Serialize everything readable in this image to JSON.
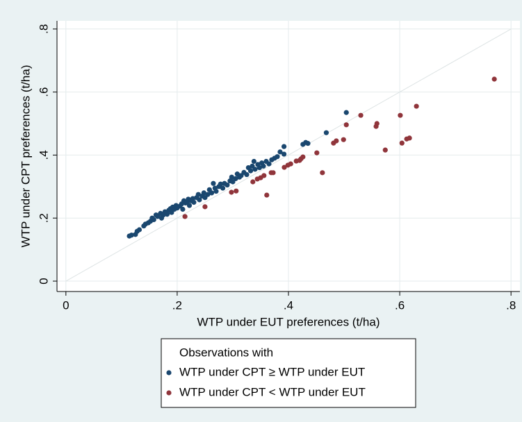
{
  "chart_data": {
    "type": "scatter",
    "x_label": "WTP under EUT preferences (t/ha)",
    "y_label": "WTP under CPT preferences (t/ha)",
    "xlim": [
      -0.016,
      0.816
    ],
    "ylim": [
      -0.033,
      0.826
    ],
    "xticks": [
      {
        "value": 0,
        "label": "0"
      },
      {
        "value": 0.2,
        "label": ".2"
      },
      {
        "value": 0.4,
        "label": ".4"
      },
      {
        "value": 0.6,
        "label": ".6"
      },
      {
        "value": 0.8,
        "label": ".8"
      }
    ],
    "yticks": [
      {
        "value": 0,
        "label": "0"
      },
      {
        "value": 0.2,
        "label": ".2"
      },
      {
        "value": 0.4,
        "label": ".4"
      },
      {
        "value": 0.6,
        "label": ".6"
      },
      {
        "value": 0.8,
        "label": ".8"
      }
    ],
    "grid": true,
    "legend_title": "Observations with",
    "legend_position": "bottom",
    "series": [
      {
        "name": "WTP under CPT ≥ WTP under EUT",
        "color": "#1a476f",
        "x": [
          0.114,
          0.118,
          0.125,
          0.128,
          0.132,
          0.14,
          0.143,
          0.148,
          0.152,
          0.155,
          0.158,
          0.162,
          0.165,
          0.17,
          0.172,
          0.175,
          0.178,
          0.182,
          0.185,
          0.188,
          0.19,
          0.192,
          0.195,
          0.198,
          0.2,
          0.205,
          0.208,
          0.21,
          0.212,
          0.215,
          0.218,
          0.22,
          0.222,
          0.225,
          0.228,
          0.23,
          0.235,
          0.238,
          0.24,
          0.245,
          0.248,
          0.25,
          0.255,
          0.258,
          0.262,
          0.265,
          0.268,
          0.27,
          0.275,
          0.278,
          0.282,
          0.285,
          0.29,
          0.295,
          0.298,
          0.3,
          0.305,
          0.308,
          0.312,
          0.315,
          0.32,
          0.325,
          0.328,
          0.332,
          0.335,
          0.338,
          0.34,
          0.345,
          0.348,
          0.352,
          0.355,
          0.36,
          0.365,
          0.37,
          0.375,
          0.38,
          0.385,
          0.392,
          0.392,
          0.426,
          0.431,
          0.435,
          0.468,
          0.504
        ],
        "values": [
          0.143,
          0.146,
          0.148,
          0.158,
          0.163,
          0.175,
          0.181,
          0.185,
          0.19,
          0.2,
          0.195,
          0.21,
          0.205,
          0.215,
          0.2,
          0.21,
          0.22,
          0.212,
          0.225,
          0.23,
          0.218,
          0.235,
          0.228,
          0.24,
          0.232,
          0.238,
          0.245,
          0.228,
          0.255,
          0.248,
          0.25,
          0.26,
          0.24,
          0.255,
          0.262,
          0.25,
          0.265,
          0.275,
          0.258,
          0.27,
          0.28,
          0.265,
          0.275,
          0.29,
          0.28,
          0.31,
          0.295,
          0.285,
          0.3,
          0.308,
          0.295,
          0.31,
          0.305,
          0.318,
          0.33,
          0.315,
          0.325,
          0.34,
          0.33,
          0.335,
          0.345,
          0.338,
          0.36,
          0.35,
          0.365,
          0.38,
          0.355,
          0.37,
          0.36,
          0.375,
          0.365,
          0.38,
          0.372,
          0.385,
          0.39,
          0.395,
          0.41,
          0.403,
          0.427,
          0.434,
          0.44,
          0.437,
          0.471,
          0.535
        ]
      },
      {
        "name": "WTP under CPT < WTP under EUT",
        "color": "#90353b",
        "x": [
          0.214,
          0.25,
          0.2975,
          0.306,
          0.336,
          0.344,
          0.35,
          0.356,
          0.361,
          0.369,
          0.3725,
          0.3925,
          0.399,
          0.404,
          0.414,
          0.42,
          0.4225,
          0.426,
          0.451,
          0.461,
          0.481,
          0.486,
          0.499,
          0.504,
          0.53,
          0.5575,
          0.559,
          0.574,
          0.601,
          0.604,
          0.6125,
          0.6175,
          0.63,
          0.77
        ],
        "values": [
          0.205,
          0.236,
          0.282,
          0.286,
          0.315,
          0.324,
          0.328,
          0.335,
          0.273,
          0.344,
          0.344,
          0.361,
          0.368,
          0.372,
          0.381,
          0.383,
          0.388,
          0.394,
          0.407,
          0.344,
          0.438,
          0.445,
          0.449,
          0.496,
          0.526,
          0.491,
          0.5,
          0.416,
          0.526,
          0.438,
          0.451,
          0.454,
          0.555,
          0.641
        ]
      }
    ]
  }
}
